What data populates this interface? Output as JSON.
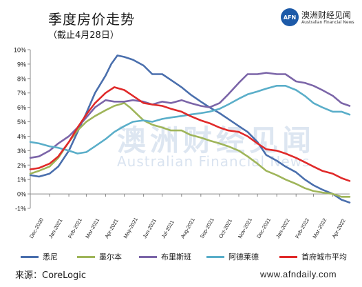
{
  "header": {
    "title": "季度房价走势",
    "subtitle": "（截止4月28日）"
  },
  "logo": {
    "mark": "AFN",
    "name_cn": "澳洲财经见闻",
    "name_en": "Australian Financial News"
  },
  "watermark": {
    "cn": "澳洲财经见闻",
    "en": "Australian Financial News"
  },
  "footer": {
    "source": "来源：CoreLogic",
    "website": "www.afndaily.com"
  },
  "chart_data": {
    "type": "line",
    "title": "季度房价走势",
    "subtitle": "（截止4月28日）",
    "x_start": "2020-12-01",
    "x_end": "2022-04-28",
    "x_ticks": [
      {
        "label": "Dec-2020",
        "date": "2020-12-01"
      },
      {
        "label": "Jan-2021",
        "date": "2021-01-01"
      },
      {
        "label": "Feb-2021",
        "date": "2021-02-01"
      },
      {
        "label": "Mar-2021",
        "date": "2021-03-01"
      },
      {
        "label": "Apr-2021",
        "date": "2021-04-01"
      },
      {
        "label": "May-2021",
        "date": "2021-05-01"
      },
      {
        "label": "Jun-2021",
        "date": "2021-06-01"
      },
      {
        "label": "Jul-2021",
        "date": "2021-07-01"
      },
      {
        "label": "Aug-2021",
        "date": "2021-08-01"
      },
      {
        "label": "Sep-2021",
        "date": "2021-09-01"
      },
      {
        "label": "Oct-2021",
        "date": "2021-10-01"
      },
      {
        "label": "Nov-2021",
        "date": "2021-11-01"
      },
      {
        "label": "Dec-2021",
        "date": "2021-12-01"
      },
      {
        "label": "Jan-2022",
        "date": "2022-01-01"
      },
      {
        "label": "Feb-2022",
        "date": "2022-02-01"
      },
      {
        "label": "Mar-2022",
        "date": "2022-03-01"
      },
      {
        "label": "Apr-2022",
        "date": "2022-04-01"
      }
    ],
    "y_ticks": [
      "-1%",
      "0%",
      "1%",
      "2%",
      "3%",
      "4%",
      "5%",
      "6%",
      "7%",
      "8%",
      "9%",
      "10%"
    ],
    "ylim": [
      -1,
      10
    ],
    "y_unit": "%",
    "grid": false,
    "legend_position": "bottom",
    "series": [
      {
        "name": "悉尼",
        "color": "#4a6fad",
        "points": [
          [
            "2020-12-01",
            1.3
          ],
          [
            "2020-12-15",
            1.2
          ],
          [
            "2021-01-01",
            1.4
          ],
          [
            "2021-01-15",
            1.9
          ],
          [
            "2021-02-01",
            3.0
          ],
          [
            "2021-02-15",
            4.3
          ],
          [
            "2021-03-01",
            5.6
          ],
          [
            "2021-03-15",
            7.0
          ],
          [
            "2021-04-01",
            8.2
          ],
          [
            "2021-04-10",
            9.0
          ],
          [
            "2021-04-20",
            9.6
          ],
          [
            "2021-05-01",
            9.5
          ],
          [
            "2021-05-15",
            9.3
          ],
          [
            "2021-06-01",
            8.9
          ],
          [
            "2021-06-15",
            8.3
          ],
          [
            "2021-07-01",
            8.3
          ],
          [
            "2021-07-15",
            7.9
          ],
          [
            "2021-08-01",
            7.4
          ],
          [
            "2021-08-15",
            6.9
          ],
          [
            "2021-09-01",
            6.4
          ],
          [
            "2021-09-15",
            6.0
          ],
          [
            "2021-10-01",
            5.6
          ],
          [
            "2021-10-15",
            5.2
          ],
          [
            "2021-11-01",
            4.7
          ],
          [
            "2021-11-15",
            4.3
          ],
          [
            "2021-12-01",
            3.6
          ],
          [
            "2021-12-15",
            2.7
          ],
          [
            "2022-01-01",
            2.3
          ],
          [
            "2022-01-15",
            1.9
          ],
          [
            "2022-02-01",
            1.5
          ],
          [
            "2022-02-15",
            1.0
          ],
          [
            "2022-03-01",
            0.6
          ],
          [
            "2022-03-15",
            0.3
          ],
          [
            "2022-04-01",
            0.0
          ],
          [
            "2022-04-15",
            -0.4
          ],
          [
            "2022-04-28",
            -0.6
          ]
        ]
      },
      {
        "name": "墨尔本",
        "color": "#9fb55a",
        "points": [
          [
            "2020-12-01",
            1.4
          ],
          [
            "2020-12-15",
            1.6
          ],
          [
            "2021-01-01",
            1.9
          ],
          [
            "2021-01-15",
            2.5
          ],
          [
            "2021-02-01",
            3.6
          ],
          [
            "2021-02-15",
            4.4
          ],
          [
            "2021-03-01",
            5.0
          ],
          [
            "2021-03-15",
            5.4
          ],
          [
            "2021-04-01",
            5.8
          ],
          [
            "2021-04-15",
            6.1
          ],
          [
            "2021-05-01",
            6.3
          ],
          [
            "2021-05-10",
            6.0
          ],
          [
            "2021-06-01",
            5.1
          ],
          [
            "2021-06-15",
            4.8
          ],
          [
            "2021-07-01",
            4.6
          ],
          [
            "2021-07-15",
            4.4
          ],
          [
            "2021-08-01",
            4.4
          ],
          [
            "2021-08-15",
            4.1
          ],
          [
            "2021-09-01",
            3.9
          ],
          [
            "2021-09-15",
            3.7
          ],
          [
            "2021-10-01",
            3.5
          ],
          [
            "2021-10-15",
            3.3
          ],
          [
            "2021-11-01",
            3.0
          ],
          [
            "2021-11-15",
            2.6
          ],
          [
            "2021-12-01",
            2.1
          ],
          [
            "2021-12-15",
            1.6
          ],
          [
            "2022-01-01",
            1.3
          ],
          [
            "2022-01-15",
            1.0
          ],
          [
            "2022-02-01",
            0.7
          ],
          [
            "2022-02-15",
            0.4
          ],
          [
            "2022-03-01",
            0.2
          ],
          [
            "2022-03-15",
            0.1
          ],
          [
            "2022-04-01",
            0.0
          ],
          [
            "2022-04-15",
            -0.2
          ],
          [
            "2022-04-28",
            -0.2
          ]
        ]
      },
      {
        "name": "布里斯班",
        "color": "#7b65a8",
        "points": [
          [
            "2020-12-01",
            2.5
          ],
          [
            "2020-12-15",
            2.6
          ],
          [
            "2021-01-01",
            3.0
          ],
          [
            "2021-01-15",
            3.5
          ],
          [
            "2021-02-01",
            4.0
          ],
          [
            "2021-02-15",
            4.6
          ],
          [
            "2021-03-01",
            5.3
          ],
          [
            "2021-03-15",
            6.0
          ],
          [
            "2021-04-01",
            6.5
          ],
          [
            "2021-04-15",
            6.4
          ],
          [
            "2021-05-01",
            6.4
          ],
          [
            "2021-05-15",
            6.5
          ],
          [
            "2021-06-01",
            6.4
          ],
          [
            "2021-06-15",
            6.2
          ],
          [
            "2021-07-01",
            6.4
          ],
          [
            "2021-07-15",
            6.3
          ],
          [
            "2021-08-01",
            6.5
          ],
          [
            "2021-08-15",
            6.3
          ],
          [
            "2021-09-01",
            6.1
          ],
          [
            "2021-09-15",
            6.0
          ],
          [
            "2021-10-01",
            6.3
          ],
          [
            "2021-10-15",
            6.9
          ],
          [
            "2021-11-01",
            7.7
          ],
          [
            "2021-11-15",
            8.3
          ],
          [
            "2021-12-01",
            8.3
          ],
          [
            "2021-12-15",
            8.4
          ],
          [
            "2022-01-01",
            8.3
          ],
          [
            "2022-01-15",
            8.3
          ],
          [
            "2022-02-01",
            7.8
          ],
          [
            "2022-02-15",
            7.7
          ],
          [
            "2022-03-01",
            7.5
          ],
          [
            "2022-03-15",
            7.2
          ],
          [
            "2022-04-01",
            6.8
          ],
          [
            "2022-04-15",
            6.3
          ],
          [
            "2022-04-28",
            6.1
          ]
        ]
      },
      {
        "name": "阿德莱德",
        "color": "#5aaec9",
        "points": [
          [
            "2020-12-01",
            3.6
          ],
          [
            "2020-12-15",
            3.5
          ],
          [
            "2021-01-01",
            3.3
          ],
          [
            "2021-01-15",
            3.2
          ],
          [
            "2021-02-01",
            3.0
          ],
          [
            "2021-02-15",
            2.8
          ],
          [
            "2021-03-01",
            2.9
          ],
          [
            "2021-03-15",
            3.3
          ],
          [
            "2021-04-01",
            3.8
          ],
          [
            "2021-04-15",
            4.3
          ],
          [
            "2021-05-01",
            4.7
          ],
          [
            "2021-05-15",
            5.0
          ],
          [
            "2021-06-01",
            5.1
          ],
          [
            "2021-06-15",
            5.0
          ],
          [
            "2021-07-01",
            5.2
          ],
          [
            "2021-07-15",
            5.3
          ],
          [
            "2021-08-01",
            5.4
          ],
          [
            "2021-08-15",
            5.5
          ],
          [
            "2021-09-01",
            5.6
          ],
          [
            "2021-09-15",
            5.7
          ],
          [
            "2021-10-01",
            5.9
          ],
          [
            "2021-10-15",
            6.2
          ],
          [
            "2021-11-01",
            6.6
          ],
          [
            "2021-11-15",
            6.9
          ],
          [
            "2021-12-01",
            7.1
          ],
          [
            "2021-12-15",
            7.3
          ],
          [
            "2022-01-01",
            7.5
          ],
          [
            "2022-01-15",
            7.5
          ],
          [
            "2022-02-01",
            7.2
          ],
          [
            "2022-02-15",
            6.8
          ],
          [
            "2022-03-01",
            6.3
          ],
          [
            "2022-03-15",
            6.0
          ],
          [
            "2022-04-01",
            5.7
          ],
          [
            "2022-04-15",
            5.7
          ],
          [
            "2022-04-28",
            5.5
          ]
        ]
      },
      {
        "name": "首府城市平均",
        "color": "#e02a2a",
        "points": [
          [
            "2020-12-01",
            1.7
          ],
          [
            "2020-12-15",
            1.8
          ],
          [
            "2021-01-01",
            2.1
          ],
          [
            "2021-01-15",
            2.6
          ],
          [
            "2021-02-01",
            3.6
          ],
          [
            "2021-02-15",
            4.6
          ],
          [
            "2021-03-01",
            5.5
          ],
          [
            "2021-03-15",
            6.3
          ],
          [
            "2021-04-01",
            7.0
          ],
          [
            "2021-04-15",
            7.4
          ],
          [
            "2021-05-01",
            7.2
          ],
          [
            "2021-05-15",
            6.8
          ],
          [
            "2021-06-01",
            6.3
          ],
          [
            "2021-06-15",
            6.2
          ],
          [
            "2021-07-01",
            6.1
          ],
          [
            "2021-07-15",
            5.9
          ],
          [
            "2021-08-01",
            5.7
          ],
          [
            "2021-08-15",
            5.4
          ],
          [
            "2021-09-01",
            5.1
          ],
          [
            "2021-09-15",
            4.9
          ],
          [
            "2021-10-01",
            4.6
          ],
          [
            "2021-10-15",
            4.4
          ],
          [
            "2021-11-01",
            4.3
          ],
          [
            "2021-11-15",
            4.0
          ],
          [
            "2021-12-01",
            3.5
          ],
          [
            "2021-12-15",
            3.1
          ],
          [
            "2022-01-01",
            3.0
          ],
          [
            "2022-01-15",
            2.8
          ],
          [
            "2022-02-01",
            2.5
          ],
          [
            "2022-02-15",
            2.2
          ],
          [
            "2022-03-01",
            1.9
          ],
          [
            "2022-03-15",
            1.6
          ],
          [
            "2022-04-01",
            1.4
          ],
          [
            "2022-04-15",
            1.1
          ],
          [
            "2022-04-28",
            0.9
          ]
        ]
      }
    ]
  }
}
